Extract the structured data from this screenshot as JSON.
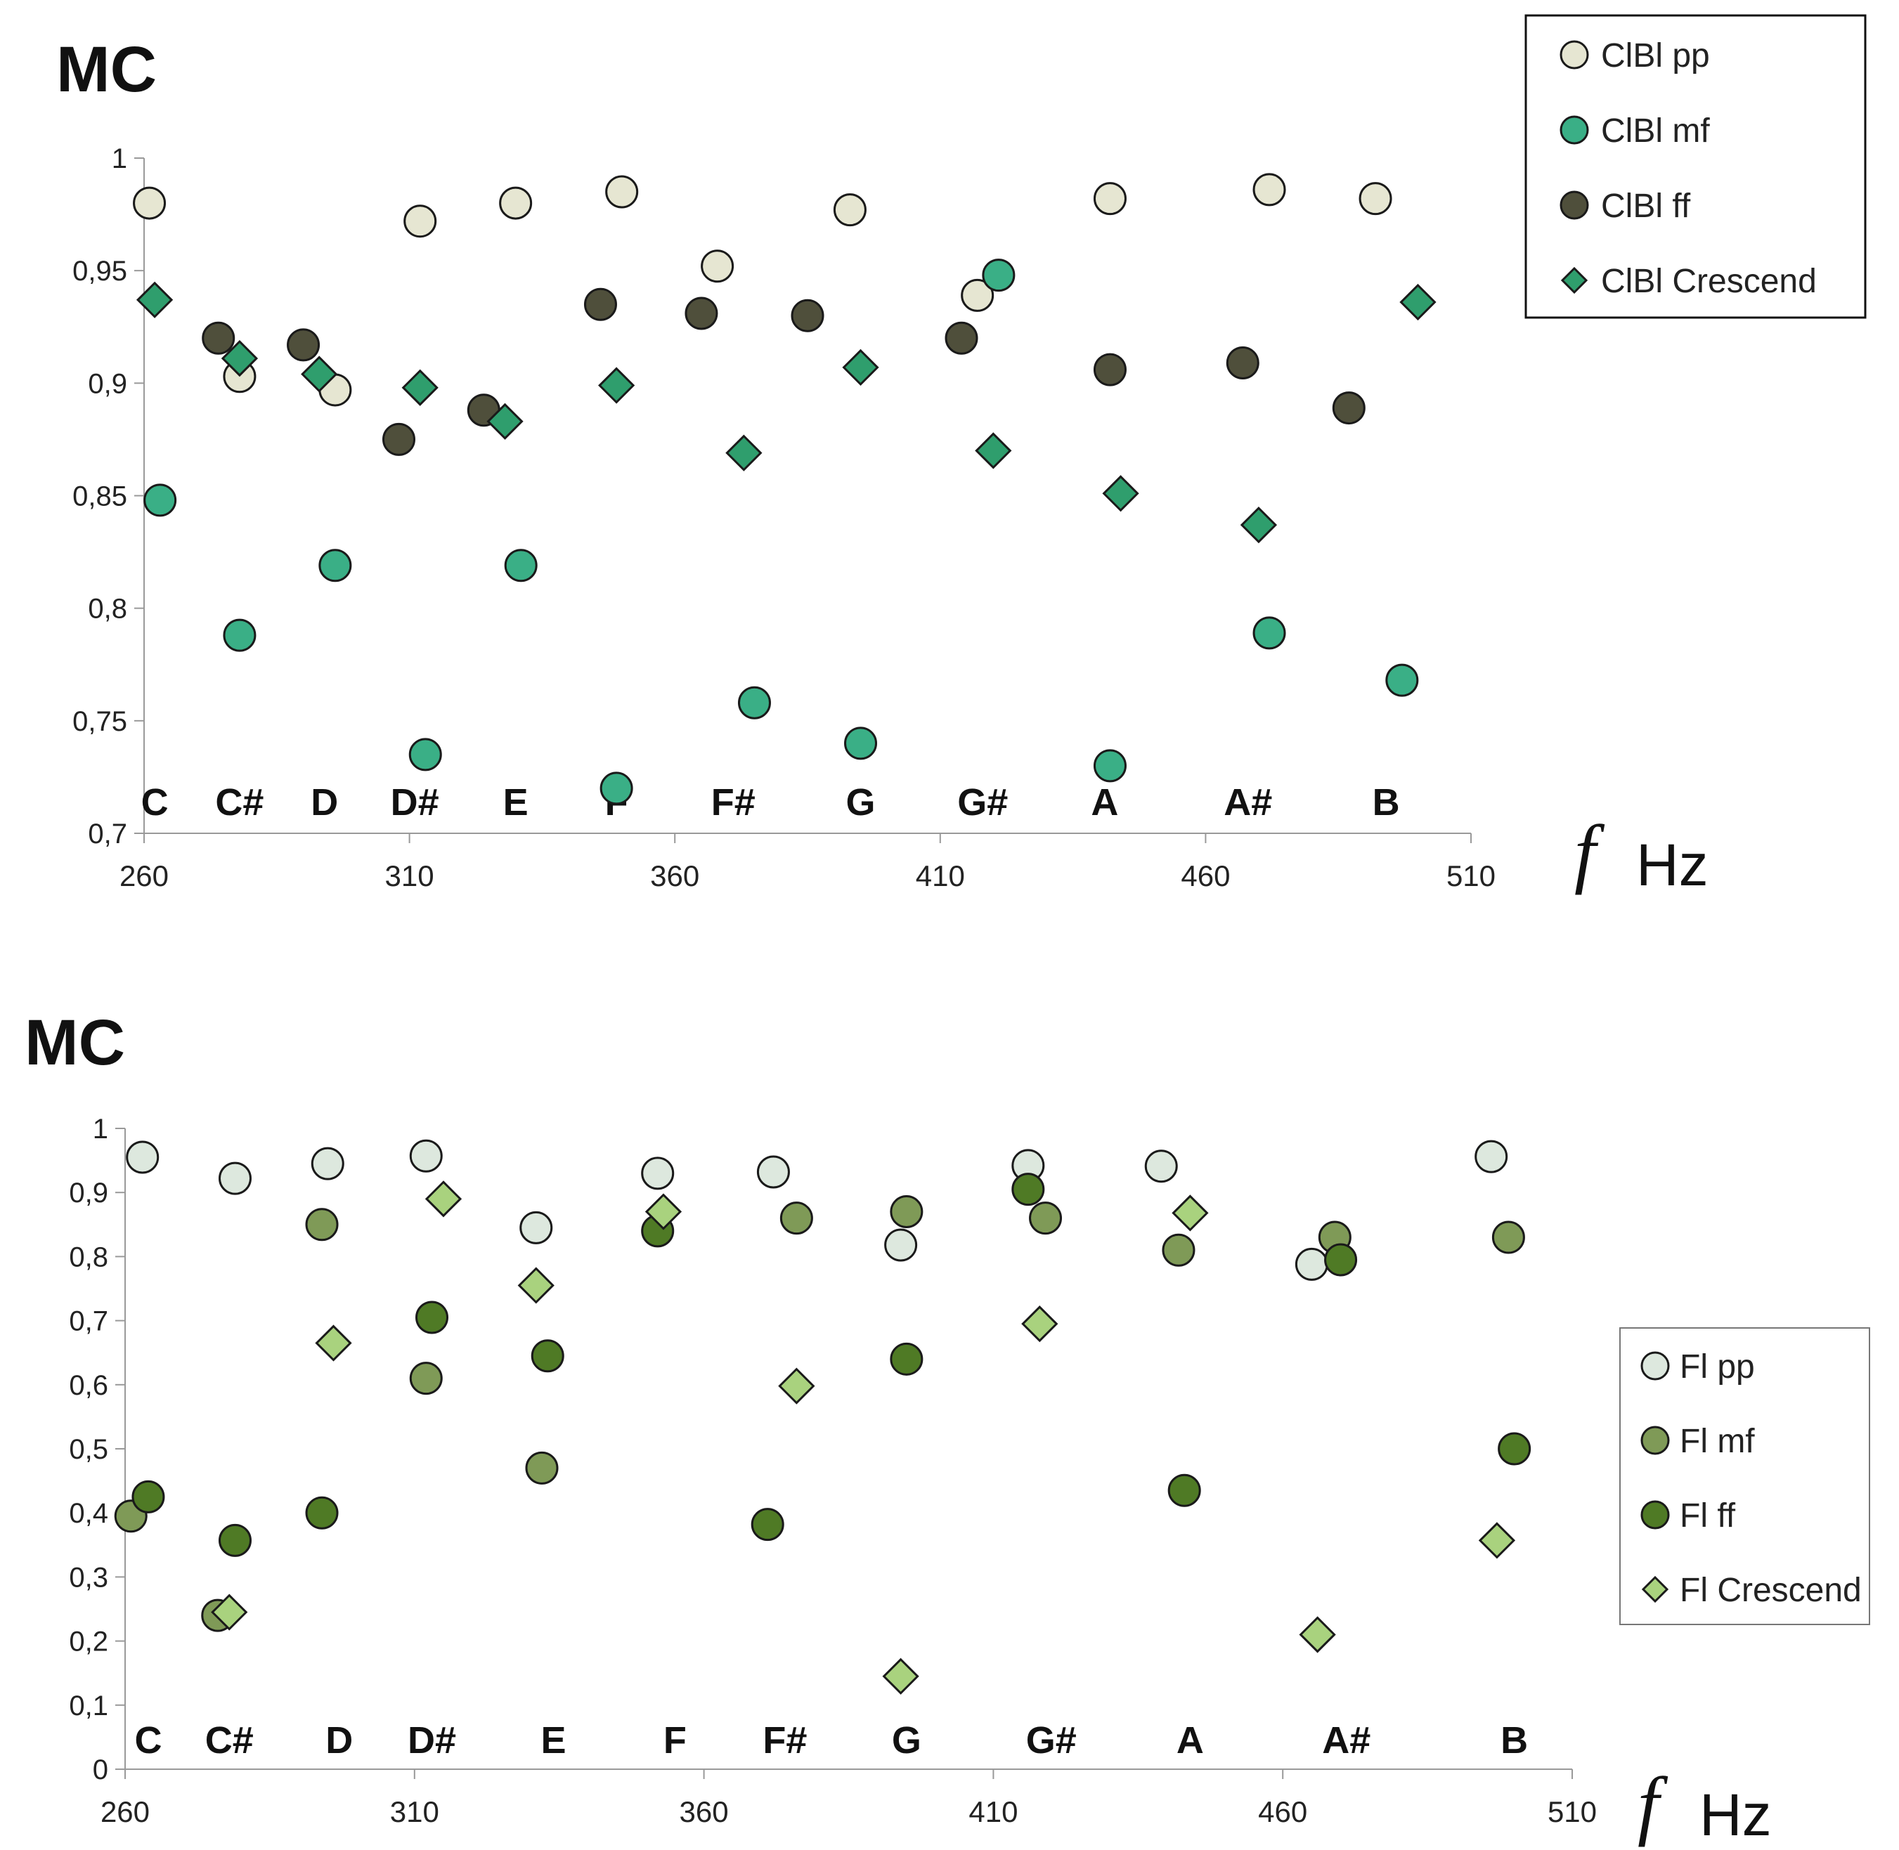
{
  "chart_data": [
    {
      "type": "scatter",
      "title": "MC",
      "xlabel_symbol": "f",
      "xlabel_unit": "Hz",
      "xlim": [
        260,
        510
      ],
      "ylim": [
        0.7,
        1
      ],
      "xticks": [
        "260",
        "310",
        "360",
        "410",
        "460",
        "510"
      ],
      "yticks": [
        "0,7",
        "0,75",
        "0,8",
        "0,85",
        "0,9",
        "0,95",
        "1"
      ],
      "notes": [
        {
          "label": "C",
          "x": 262
        },
        {
          "label": "C#",
          "x": 278
        },
        {
          "label": "D",
          "x": 294
        },
        {
          "label": "D#",
          "x": 311
        },
        {
          "label": "E",
          "x": 330
        },
        {
          "label": "F",
          "x": 349
        },
        {
          "label": "F#",
          "x": 371
        },
        {
          "label": "G",
          "x": 395
        },
        {
          "label": "G#",
          "x": 418
        },
        {
          "label": "A",
          "x": 441
        },
        {
          "label": "A#",
          "x": 468
        },
        {
          "label": "B",
          "x": 494
        }
      ],
      "legend_position": "top-right",
      "grid": false,
      "series": [
        {
          "name": "ClBl pp",
          "marker": "circle",
          "color": "#e6e6d2",
          "points": [
            [
              261,
              0.98
            ],
            [
              278,
              0.903
            ],
            [
              296,
              0.897
            ],
            [
              312,
              0.972
            ],
            [
              330,
              0.98
            ],
            [
              350,
              0.985
            ],
            [
              368,
              0.952
            ],
            [
              393,
              0.977
            ],
            [
              417,
              0.939
            ],
            [
              442,
              0.982
            ],
            [
              472,
              0.986
            ],
            [
              492,
              0.982
            ]
          ]
        },
        {
          "name": "ClBl mf",
          "marker": "circle",
          "color": "#3aaf86",
          "points": [
            [
              263,
              0.848
            ],
            [
              278,
              0.788
            ],
            [
              296,
              0.819
            ],
            [
              313,
              0.735
            ],
            [
              331,
              0.819
            ],
            [
              349,
              0.72
            ],
            [
              375,
              0.758
            ],
            [
              395,
              0.74
            ],
            [
              421,
              0.948
            ],
            [
              442,
              0.73
            ],
            [
              472,
              0.789
            ],
            [
              497,
              0.768
            ]
          ]
        },
        {
          "name": "ClBl ff",
          "marker": "circle",
          "color": "#4f4f3b",
          "points": [
            [
              274,
              0.92
            ],
            [
              290,
              0.917
            ],
            [
              308,
              0.875
            ],
            [
              324,
              0.888
            ],
            [
              346,
              0.935
            ],
            [
              365,
              0.931
            ],
            [
              385,
              0.93
            ],
            [
              414,
              0.92
            ],
            [
              442,
              0.906
            ],
            [
              467,
              0.909
            ],
            [
              487,
              0.889
            ]
          ]
        },
        {
          "name": "ClBl Crescend",
          "marker": "diamond",
          "color": "#2f9e6d",
          "points": [
            [
              262,
              0.937
            ],
            [
              278,
              0.911
            ],
            [
              293,
              0.904
            ],
            [
              312,
              0.898
            ],
            [
              328,
              0.883
            ],
            [
              349,
              0.899
            ],
            [
              373,
              0.869
            ],
            [
              395,
              0.907
            ],
            [
              420,
              0.87
            ],
            [
              444,
              0.851
            ],
            [
              470,
              0.837
            ],
            [
              500,
              0.936
            ]
          ]
        }
      ]
    },
    {
      "type": "scatter",
      "title": "MC",
      "xlabel_symbol": "f",
      "xlabel_unit": "Hz",
      "xlim": [
        260,
        510
      ],
      "ylim": [
        0,
        1
      ],
      "xticks": [
        "260",
        "310",
        "360",
        "410",
        "460",
        "510"
      ],
      "yticks": [
        "0",
        "0,1",
        "0,2",
        "0,3",
        "0,4",
        "0,5",
        "0,6",
        "0,7",
        "0,8",
        "0,9",
        "1"
      ],
      "notes": [
        {
          "label": "C",
          "x": 264
        },
        {
          "label": "C#",
          "x": 278
        },
        {
          "label": "D",
          "x": 297
        },
        {
          "label": "D#",
          "x": 313
        },
        {
          "label": "E",
          "x": 334
        },
        {
          "label": "F",
          "x": 355
        },
        {
          "label": "F#",
          "x": 374
        },
        {
          "label": "G",
          "x": 395
        },
        {
          "label": "G#",
          "x": 420
        },
        {
          "label": "A",
          "x": 444
        },
        {
          "label": "A#",
          "x": 471
        },
        {
          "label": "B",
          "x": 500
        }
      ],
      "legend_position": "right",
      "grid": false,
      "series": [
        {
          "name": "Fl pp",
          "marker": "circle",
          "color": "#dde8de",
          "points": [
            [
              263,
              0.955
            ],
            [
              279,
              0.922
            ],
            [
              295,
              0.945
            ],
            [
              312,
              0.957
            ],
            [
              331,
              0.845
            ],
            [
              352,
              0.93
            ],
            [
              372,
              0.932
            ],
            [
              394,
              0.818
            ],
            [
              416,
              0.942
            ],
            [
              439,
              0.941
            ],
            [
              465,
              0.788
            ],
            [
              496,
              0.956
            ]
          ]
        },
        {
          "name": "Fl mf",
          "marker": "circle",
          "color": "#7f9a57",
          "points": [
            [
              261,
              0.395
            ],
            [
              276,
              0.24
            ],
            [
              294,
              0.85
            ],
            [
              312,
              0.61
            ],
            [
              332,
              0.47
            ],
            [
              376,
              0.86
            ],
            [
              395,
              0.87
            ],
            [
              419,
              0.86
            ],
            [
              442,
              0.81
            ],
            [
              469,
              0.83
            ],
            [
              499,
              0.83
            ]
          ]
        },
        {
          "name": "Fl ff",
          "marker": "circle",
          "color": "#4f7a25",
          "points": [
            [
              264,
              0.425
            ],
            [
              279,
              0.357
            ],
            [
              294,
              0.4
            ],
            [
              313,
              0.705
            ],
            [
              333,
              0.645
            ],
            [
              352,
              0.84
            ],
            [
              371,
              0.382
            ],
            [
              395,
              0.64
            ],
            [
              416,
              0.905
            ],
            [
              443,
              0.435
            ],
            [
              470,
              0.795
            ],
            [
              500,
              0.5
            ]
          ]
        },
        {
          "name": "Fl Crescend",
          "marker": "diamond",
          "color": "#a9d27e",
          "points": [
            [
              278,
              0.245
            ],
            [
              296,
              0.665
            ],
            [
              315,
              0.89
            ],
            [
              331,
              0.755
            ],
            [
              353,
              0.87
            ],
            [
              376,
              0.598
            ],
            [
              394,
              0.145
            ],
            [
              418,
              0.695
            ],
            [
              444,
              0.868
            ],
            [
              466,
              0.21
            ],
            [
              497,
              0.357
            ]
          ]
        }
      ]
    }
  ]
}
